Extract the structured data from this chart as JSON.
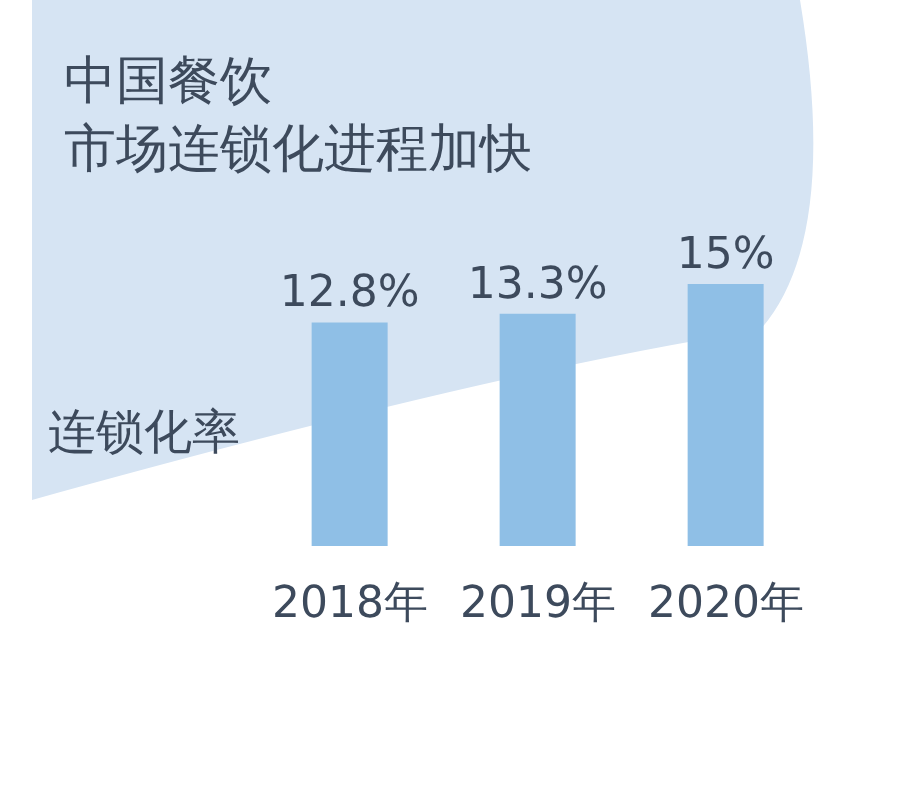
{
  "chart_data": {
    "type": "bar",
    "title": "中国餐饮",
    "subtitle": "市场连锁化进程加快",
    "ylabel": "连锁化率",
    "categories": [
      "2018年",
      "2019年",
      "2020年"
    ],
    "values": [
      12.8,
      13.3,
      15
    ],
    "value_labels": [
      "12.8%",
      "13.3%",
      "15%"
    ],
    "color": "#8fbfe6"
  }
}
